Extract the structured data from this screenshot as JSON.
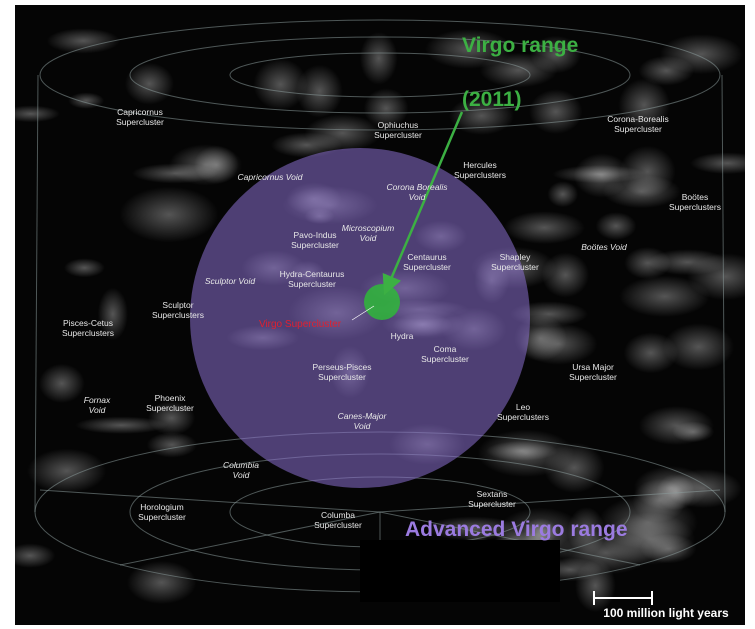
{
  "virgo_range": [
    "Virgo range",
    "(2011)"
  ],
  "advanced_virgo_range": "Advanced Virgo range",
  "virgo_supercluster": "Virgo Supercluster",
  "scale_label": "100 million light years",
  "superclusters": [
    [
      "Capricornus",
      "Supercluster"
    ],
    [
      "Ophiuchus",
      "Supercluster"
    ],
    [
      "Corona-Borealis",
      "Supercluster"
    ],
    [
      "Hercules",
      "Superclusters"
    ],
    [
      "Boötes",
      "Superclusters"
    ],
    [
      "Pavo-Indus",
      "Supercluster"
    ],
    [
      "Centaurus",
      "Supercluster"
    ],
    [
      "Shapley",
      "Supercluster"
    ],
    [
      "Hydra-Centaurus",
      "Supercluster"
    ],
    [
      "Sculptor",
      "Superclusters"
    ],
    [
      "Pisces-Cetus",
      "Superclusters"
    ],
    [
      "Hydra"
    ],
    [
      "Coma",
      "Supercluster"
    ],
    [
      "Perseus-Pisces",
      "Supercluster"
    ],
    [
      "Ursa Major",
      "Supercluster"
    ],
    [
      "Phoenix",
      "Supercluster"
    ],
    [
      "Leo",
      "Superclusters"
    ],
    [
      "Horologium",
      "Supercluster"
    ],
    [
      "Sextans",
      "Supercluster"
    ],
    [
      "Columba",
      "Supercluster"
    ]
  ],
  "voids": [
    [
      "Capricornus Void"
    ],
    [
      "Corona Borealis",
      "Void"
    ],
    [
      "Microscopium",
      "Void"
    ],
    [
      "Boötes Void"
    ],
    [
      "Sculptor Void"
    ],
    [
      "Fornax",
      "Void"
    ],
    [
      "Canes-Major",
      "Void"
    ],
    [
      "Columbia",
      "Void"
    ]
  ]
}
